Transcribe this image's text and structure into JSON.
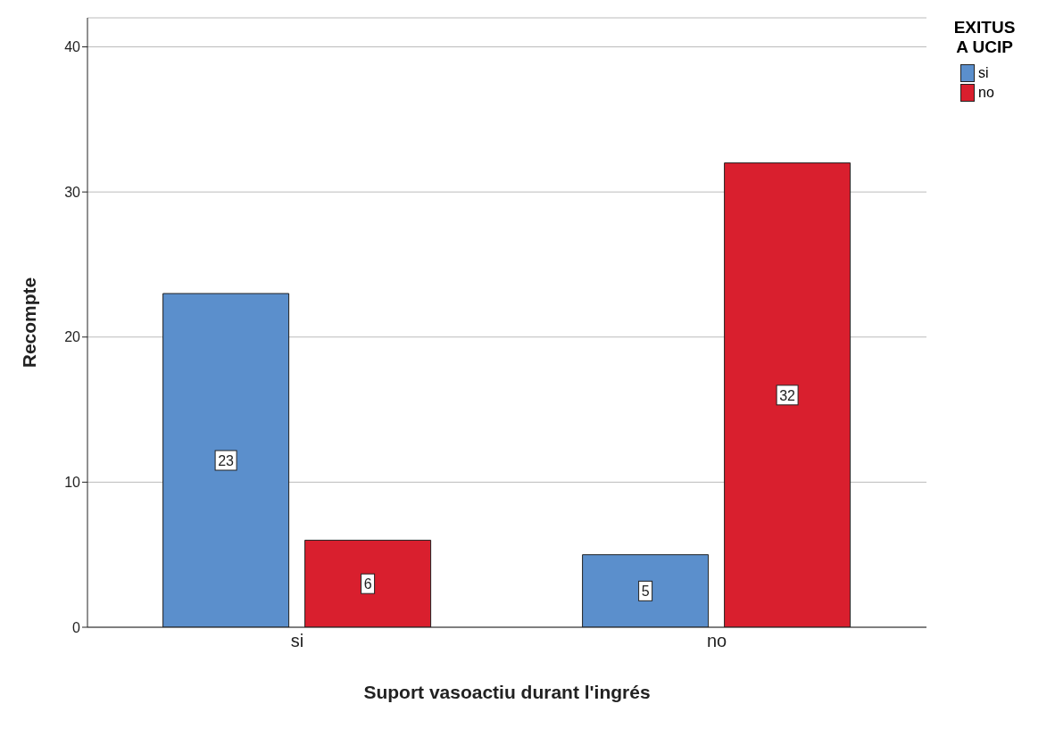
{
  "chart_data": {
    "type": "bar",
    "xlabel": "Suport vasoactiu durant l'ingrés",
    "ylabel": "Recompte",
    "legend_title": "EXITUS A UCIP",
    "categories": [
      "si",
      "no"
    ],
    "series": [
      {
        "name": "si",
        "color": "#5b8fcc",
        "values": [
          23,
          5
        ]
      },
      {
        "name": "no",
        "color": "#d91f2e",
        "values": [
          6,
          32
        ]
      }
    ],
    "ylim": [
      0,
      42
    ],
    "yticks": [
      0,
      10,
      20,
      30,
      40
    ],
    "grid": "y",
    "legend": "top right",
    "data_labels": true
  }
}
